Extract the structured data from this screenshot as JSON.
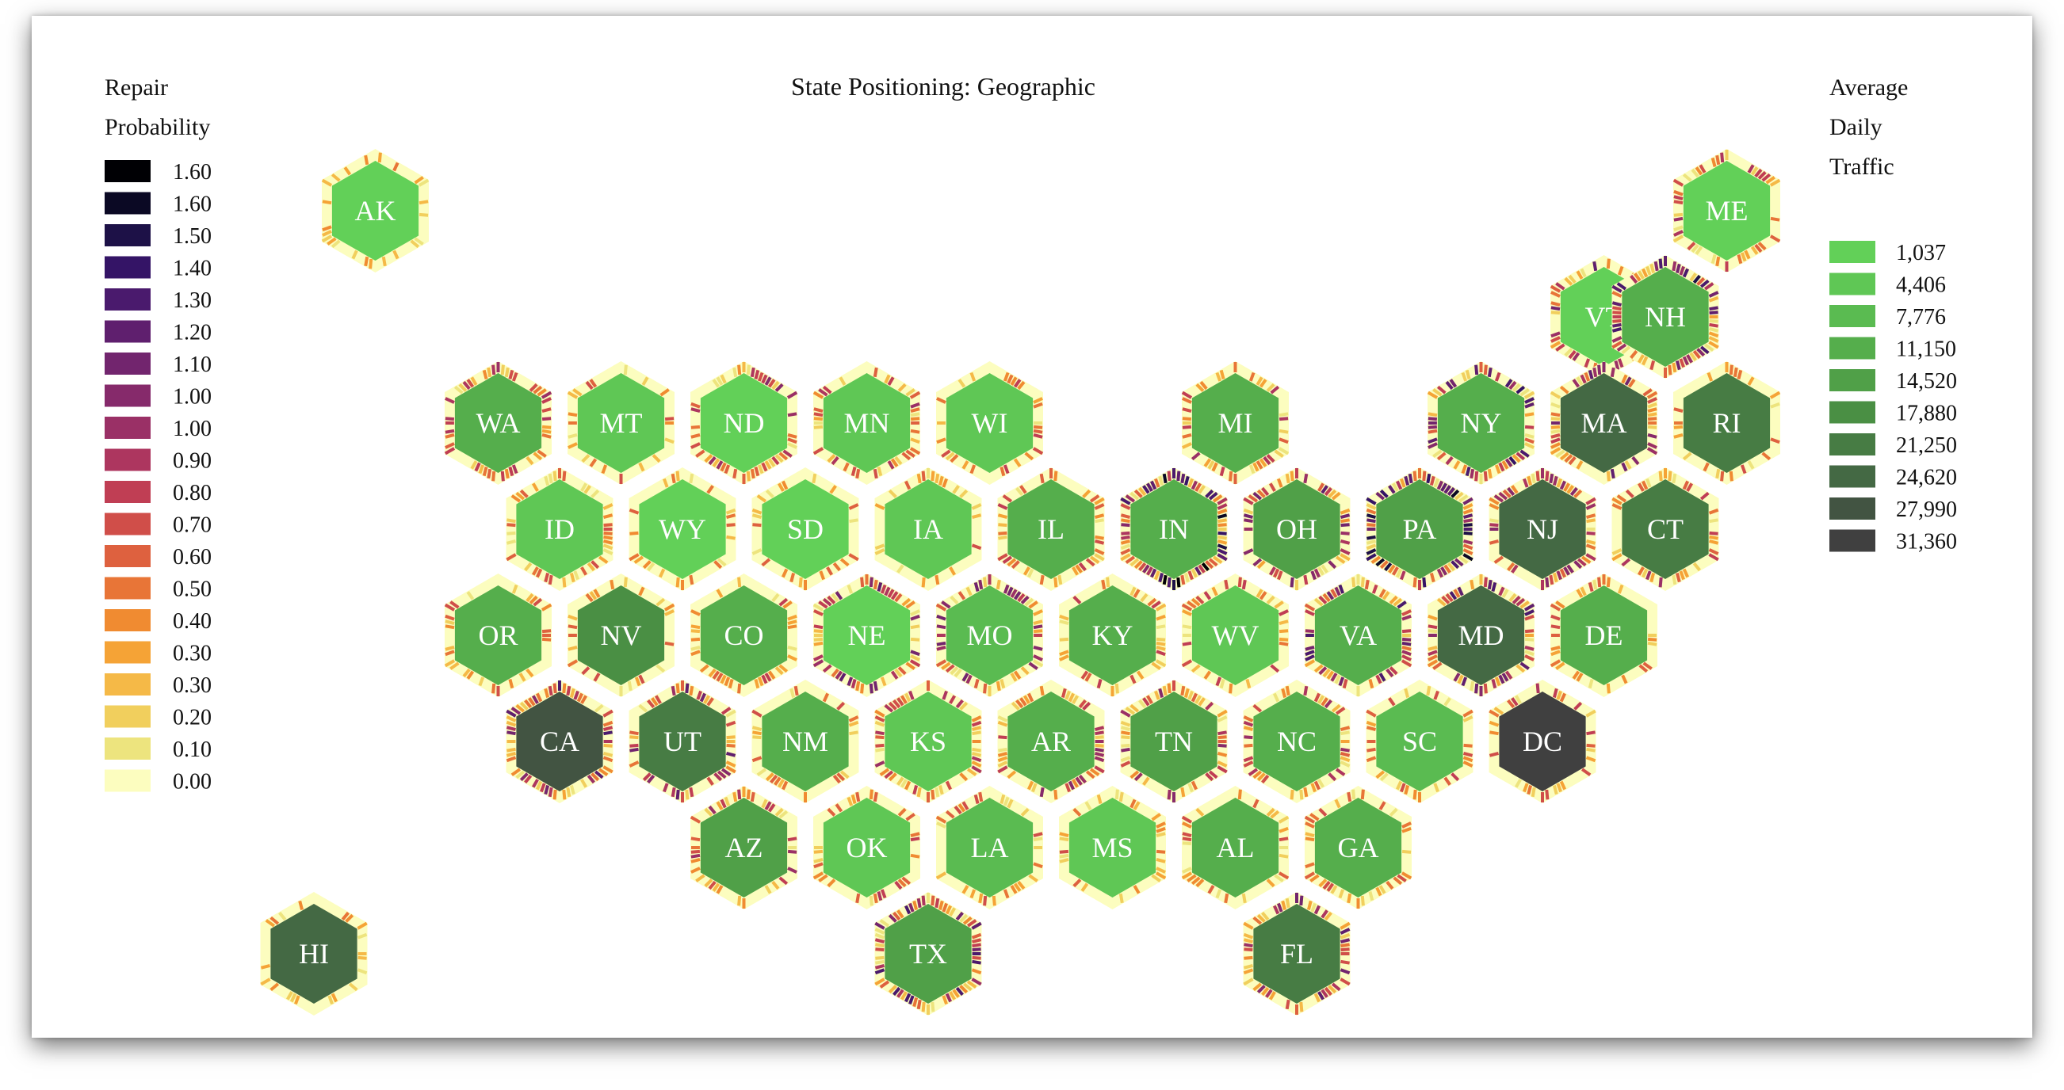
{
  "chart_data": {
    "type": "hexbin-tile-map",
    "title": "State Positioning: Geographic",
    "left_legend": {
      "title_lines": [
        "Repair",
        "Probability"
      ],
      "entries": [
        {
          "label": "1.60",
          "color": "#000004"
        },
        {
          "label": "1.60",
          "color": "#0b0924"
        },
        {
          "label": "1.50",
          "color": "#1d1147"
        },
        {
          "label": "1.40",
          "color": "#341466"
        },
        {
          "label": "1.30",
          "color": "#4a1a6d"
        },
        {
          "label": "1.20",
          "color": "#5f1f6e"
        },
        {
          "label": "1.10",
          "color": "#72256e"
        },
        {
          "label": "1.00",
          "color": "#862a6b"
        },
        {
          "label": "1.00",
          "color": "#9a3066"
        },
        {
          "label": "0.90",
          "color": "#ad365f"
        },
        {
          "label": "0.80",
          "color": "#c03e54"
        },
        {
          "label": "0.70",
          "color": "#d04e49"
        },
        {
          "label": "0.60",
          "color": "#de613f"
        },
        {
          "label": "0.50",
          "color": "#e87537"
        },
        {
          "label": "0.40",
          "color": "#f08b31"
        },
        {
          "label": "0.30",
          "color": "#f5a336"
        },
        {
          "label": "0.30",
          "color": "#f5b947"
        },
        {
          "label": "0.20",
          "color": "#f1cf5d"
        },
        {
          "label": "0.10",
          "color": "#ede47e"
        },
        {
          "label": "0.00",
          "color": "#fcfdbf"
        }
      ]
    },
    "right_legend": {
      "title_lines": [
        "Average",
        "Daily",
        "Traffic"
      ],
      "entries": [
        {
          "label": "1,037",
          "color": "#62d058"
        },
        {
          "label": "4,406",
          "color": "#5fc755"
        },
        {
          "label": "7,776",
          "color": "#5abb51"
        },
        {
          "label": "11,150",
          "color": "#55ae4c"
        },
        {
          "label": "14,520",
          "color": "#50a048"
        },
        {
          "label": "17,880",
          "color": "#4a8f44"
        },
        {
          "label": "21,250",
          "color": "#477c44"
        },
        {
          "label": "24,620",
          "color": "#446944"
        },
        {
          "label": "27,990",
          "color": "#425442"
        },
        {
          "label": "31,360",
          "color": "#404040"
        }
      ]
    },
    "states": [
      {
        "code": "AK",
        "row": 0,
        "col": 0.5,
        "traffic_level": 0,
        "repair_intensity": 0.1
      },
      {
        "code": "ME",
        "row": 0,
        "col": 11.5,
        "traffic_level": 0,
        "repair_intensity": 0.4
      },
      {
        "code": "VT",
        "row": 1,
        "col": 10.5,
        "traffic_level": 0,
        "repair_intensity": 0.6
      },
      {
        "code": "NH",
        "row": 1,
        "col": 11,
        "traffic_level": 3,
        "repair_intensity": 0.8
      },
      {
        "code": "WA",
        "row": 2,
        "col": 1.5,
        "traffic_level": 3,
        "repair_intensity": 0.4
      },
      {
        "code": "MT",
        "row": 2,
        "col": 2.5,
        "traffic_level": 1,
        "repair_intensity": 0.2
      },
      {
        "code": "ND",
        "row": 2,
        "col": 3.5,
        "traffic_level": 0,
        "repair_intensity": 0.5
      },
      {
        "code": "MN",
        "row": 2,
        "col": 4.5,
        "traffic_level": 1,
        "repair_intensity": 0.4
      },
      {
        "code": "WI",
        "row": 2,
        "col": 5.5,
        "traffic_level": 1,
        "repair_intensity": 0.3
      },
      {
        "code": "MI",
        "row": 2,
        "col": 7.5,
        "traffic_level": 3,
        "repair_intensity": 0.4
      },
      {
        "code": "NY",
        "row": 2,
        "col": 9.5,
        "traffic_level": 3,
        "repair_intensity": 0.8
      },
      {
        "code": "MA",
        "row": 2,
        "col": 10.5,
        "traffic_level": 7,
        "repair_intensity": 0.6
      },
      {
        "code": "RI",
        "row": 2,
        "col": 11.5,
        "traffic_level": 6,
        "repair_intensity": 0.2
      },
      {
        "code": "ID",
        "row": 3,
        "col": 2,
        "traffic_level": 1,
        "repair_intensity": 0.2
      },
      {
        "code": "WY",
        "row": 3,
        "col": 3,
        "traffic_level": 0,
        "repair_intensity": 0.1
      },
      {
        "code": "SD",
        "row": 3,
        "col": 4,
        "traffic_level": 0,
        "repair_intensity": 0.1
      },
      {
        "code": "IA",
        "row": 3,
        "col": 5,
        "traffic_level": 1,
        "repair_intensity": 0.2
      },
      {
        "code": "IL",
        "row": 3,
        "col": 6,
        "traffic_level": 3,
        "repair_intensity": 0.3
      },
      {
        "code": "IN",
        "row": 3,
        "col": 7,
        "traffic_level": 3,
        "repair_intensity": 1.0
      },
      {
        "code": "OH",
        "row": 3,
        "col": 8,
        "traffic_level": 4,
        "repair_intensity": 0.6
      },
      {
        "code": "PA",
        "row": 3,
        "col": 9,
        "traffic_level": 4,
        "repair_intensity": 0.9
      },
      {
        "code": "NJ",
        "row": 3,
        "col": 10,
        "traffic_level": 7,
        "repair_intensity": 0.5
      },
      {
        "code": "CT",
        "row": 3,
        "col": 11,
        "traffic_level": 6,
        "repair_intensity": 0.4
      },
      {
        "code": "OR",
        "row": 4,
        "col": 1.5,
        "traffic_level": 3,
        "repair_intensity": 0.2
      },
      {
        "code": "NV",
        "row": 4,
        "col": 2.5,
        "traffic_level": 5,
        "repair_intensity": 0.2
      },
      {
        "code": "CO",
        "row": 4,
        "col": 3.5,
        "traffic_level": 3,
        "repair_intensity": 0.3
      },
      {
        "code": "NE",
        "row": 4,
        "col": 4.5,
        "traffic_level": 0,
        "repair_intensity": 0.6
      },
      {
        "code": "MO",
        "row": 4,
        "col": 5.5,
        "traffic_level": 2,
        "repair_intensity": 0.6
      },
      {
        "code": "KY",
        "row": 4,
        "col": 6.5,
        "traffic_level": 3,
        "repair_intensity": 0.3
      },
      {
        "code": "WV",
        "row": 4,
        "col": 7.5,
        "traffic_level": 1,
        "repair_intensity": 0.3
      },
      {
        "code": "VA",
        "row": 4,
        "col": 8.5,
        "traffic_level": 3,
        "repair_intensity": 0.7
      },
      {
        "code": "MD",
        "row": 4,
        "col": 9.5,
        "traffic_level": 7,
        "repair_intensity": 0.7
      },
      {
        "code": "DE",
        "row": 4,
        "col": 10.5,
        "traffic_level": 3,
        "repair_intensity": 0.2
      },
      {
        "code": "CA",
        "row": 5,
        "col": 2,
        "traffic_level": 8,
        "repair_intensity": 0.7
      },
      {
        "code": "UT",
        "row": 5,
        "col": 3,
        "traffic_level": 6,
        "repair_intensity": 0.6
      },
      {
        "code": "NM",
        "row": 5,
        "col": 4,
        "traffic_level": 3,
        "repair_intensity": 0.3
      },
      {
        "code": "KS",
        "row": 5,
        "col": 5,
        "traffic_level": 1,
        "repair_intensity": 0.4
      },
      {
        "code": "AR",
        "row": 5,
        "col": 6,
        "traffic_level": 3,
        "repair_intensity": 0.5
      },
      {
        "code": "TN",
        "row": 5,
        "col": 7,
        "traffic_level": 4,
        "repair_intensity": 0.5
      },
      {
        "code": "NC",
        "row": 5,
        "col": 8,
        "traffic_level": 3,
        "repair_intensity": 0.4
      },
      {
        "code": "SC",
        "row": 5,
        "col": 9,
        "traffic_level": 2,
        "repair_intensity": 0.3
      },
      {
        "code": "DC",
        "row": 5,
        "col": 10,
        "traffic_level": 9,
        "repair_intensity": 0.3
      },
      {
        "code": "AZ",
        "row": 6,
        "col": 3.5,
        "traffic_level": 4,
        "repair_intensity": 0.4
      },
      {
        "code": "OK",
        "row": 6,
        "col": 4.5,
        "traffic_level": 1,
        "repair_intensity": 0.3
      },
      {
        "code": "LA",
        "row": 6,
        "col": 5.5,
        "traffic_level": 2,
        "repair_intensity": 0.2
      },
      {
        "code": "MS",
        "row": 6,
        "col": 6.5,
        "traffic_level": 1,
        "repair_intensity": 0.2
      },
      {
        "code": "AL",
        "row": 6,
        "col": 7.5,
        "traffic_level": 3,
        "repair_intensity": 0.2
      },
      {
        "code": "GA",
        "row": 6,
        "col": 8.5,
        "traffic_level": 3,
        "repair_intensity": 0.2
      },
      {
        "code": "HI",
        "row": 7,
        "col": 0,
        "traffic_level": 7,
        "repair_intensity": 0.05
      },
      {
        "code": "TX",
        "row": 7,
        "col": 5,
        "traffic_level": 4,
        "repair_intensity": 0.7
      },
      {
        "code": "FL",
        "row": 7,
        "col": 8,
        "traffic_level": 6,
        "repair_intensity": 0.6
      }
    ]
  }
}
